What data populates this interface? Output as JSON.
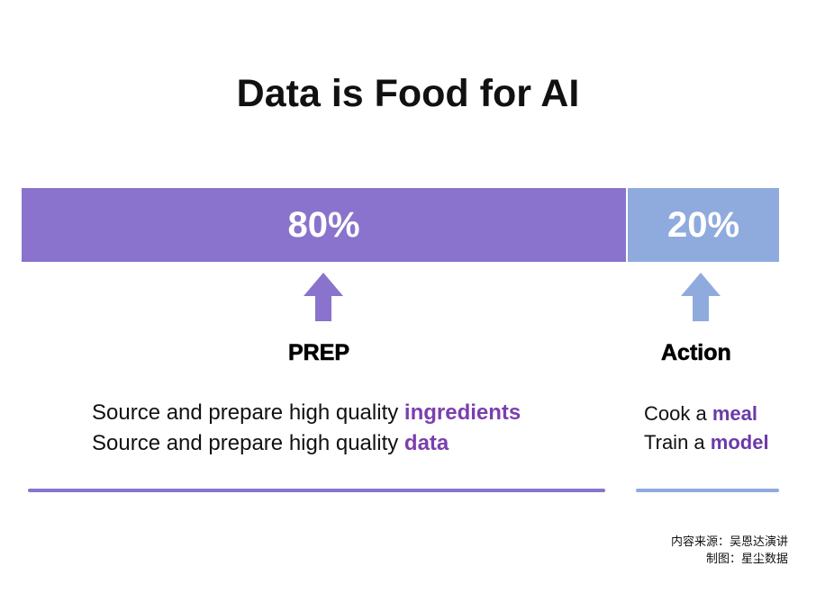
{
  "title": "Data is Food for AI",
  "colors": {
    "prep": "#8a73cc",
    "action": "#8fabde",
    "highlight": "#7b3fae"
  },
  "prep": {
    "percent": "80%",
    "share": 0.8,
    "label": "PREP",
    "line1_prefix": "Source and prepare high quality ",
    "line1_highlight": "ingredients",
    "line2_prefix": "Source and prepare high quality ",
    "line2_highlight": "data"
  },
  "action": {
    "percent": "20%",
    "share": 0.2,
    "label": "Action",
    "line1_prefix": "Cook a ",
    "line1_highlight": "meal",
    "line2_prefix": "Train a ",
    "line2_highlight": "model"
  },
  "credits": {
    "source": "内容来源：吴恩达演讲",
    "made_by": "制图：星尘数据"
  }
}
